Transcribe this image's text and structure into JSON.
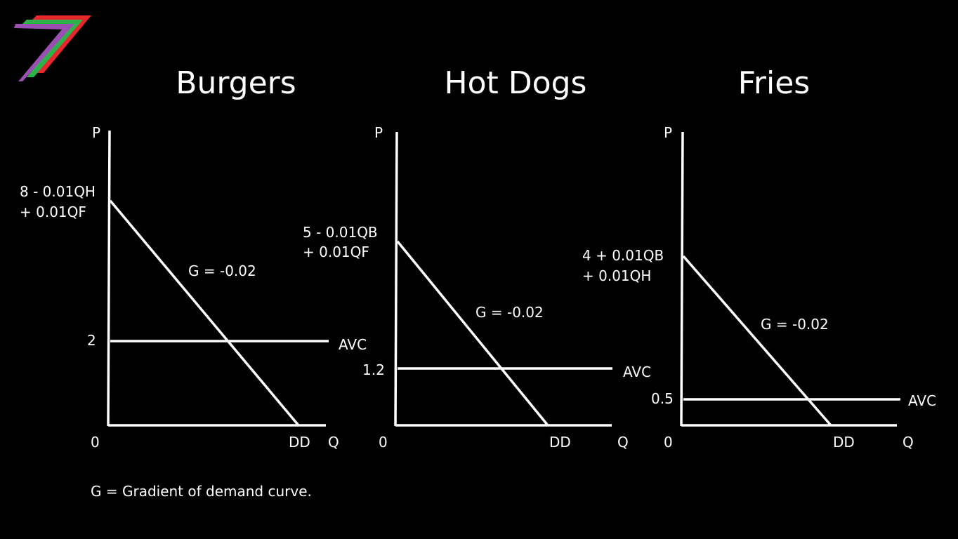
{
  "logo": {
    "colors": [
      "#e8262b",
      "#2db34a",
      "#9b4fb3"
    ]
  },
  "footnote": "G = Gradient of demand curve.",
  "panels": [
    {
      "title": "Burgers",
      "p_label": "P",
      "q_label": "Q",
      "origin_label": "0",
      "intercept_line1": "8 - 0.01QH",
      "intercept_line2": "+ 0.01QF",
      "gradient_label": "G = -0.02",
      "avc_value": "2",
      "avc_label": "AVC",
      "dd_label": "DD"
    },
    {
      "title": "Hot Dogs",
      "p_label": "P",
      "q_label": "Q",
      "origin_label": "0",
      "intercept_line1": "5 - 0.01QB",
      "intercept_line2": "+ 0.01QF",
      "gradient_label": "G = -0.02",
      "avc_value": "1.2",
      "avc_label": "AVC",
      "dd_label": "DD"
    },
    {
      "title": "Fries",
      "p_label": "P",
      "q_label": "Q",
      "origin_label": "0",
      "intercept_line1": "4 + 0.01QB",
      "intercept_line2": "+ 0.01QH",
      "gradient_label": "G = -0.02",
      "avc_value": "0.5",
      "avc_label": "AVC",
      "dd_label": "DD"
    }
  ]
}
